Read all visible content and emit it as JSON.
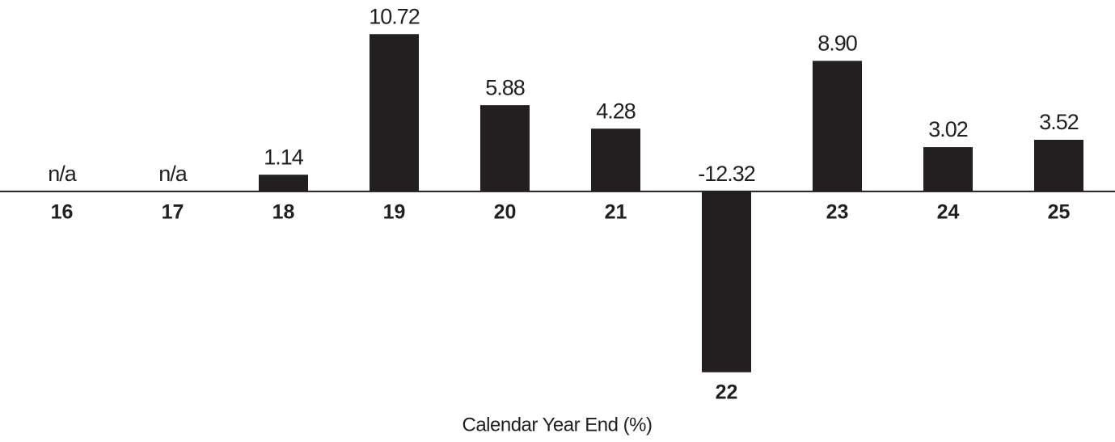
{
  "chart_data": {
    "type": "bar",
    "x_label": "Calendar Year End (%)",
    "categories": [
      "16",
      "17",
      "18",
      "19",
      "20",
      "21",
      "22",
      "23",
      "24",
      "25"
    ],
    "values": [
      null,
      null,
      1.14,
      10.72,
      5.88,
      4.28,
      -12.32,
      8.9,
      3.02,
      3.52
    ],
    "value_labels": [
      "n/a",
      "n/a",
      "1.14",
      "10.72",
      "5.88",
      "4.28",
      "-12.32",
      "8.90",
      "3.02",
      "3.52"
    ],
    "color": "#231f20",
    "ylim": [
      -13,
      12
    ]
  }
}
